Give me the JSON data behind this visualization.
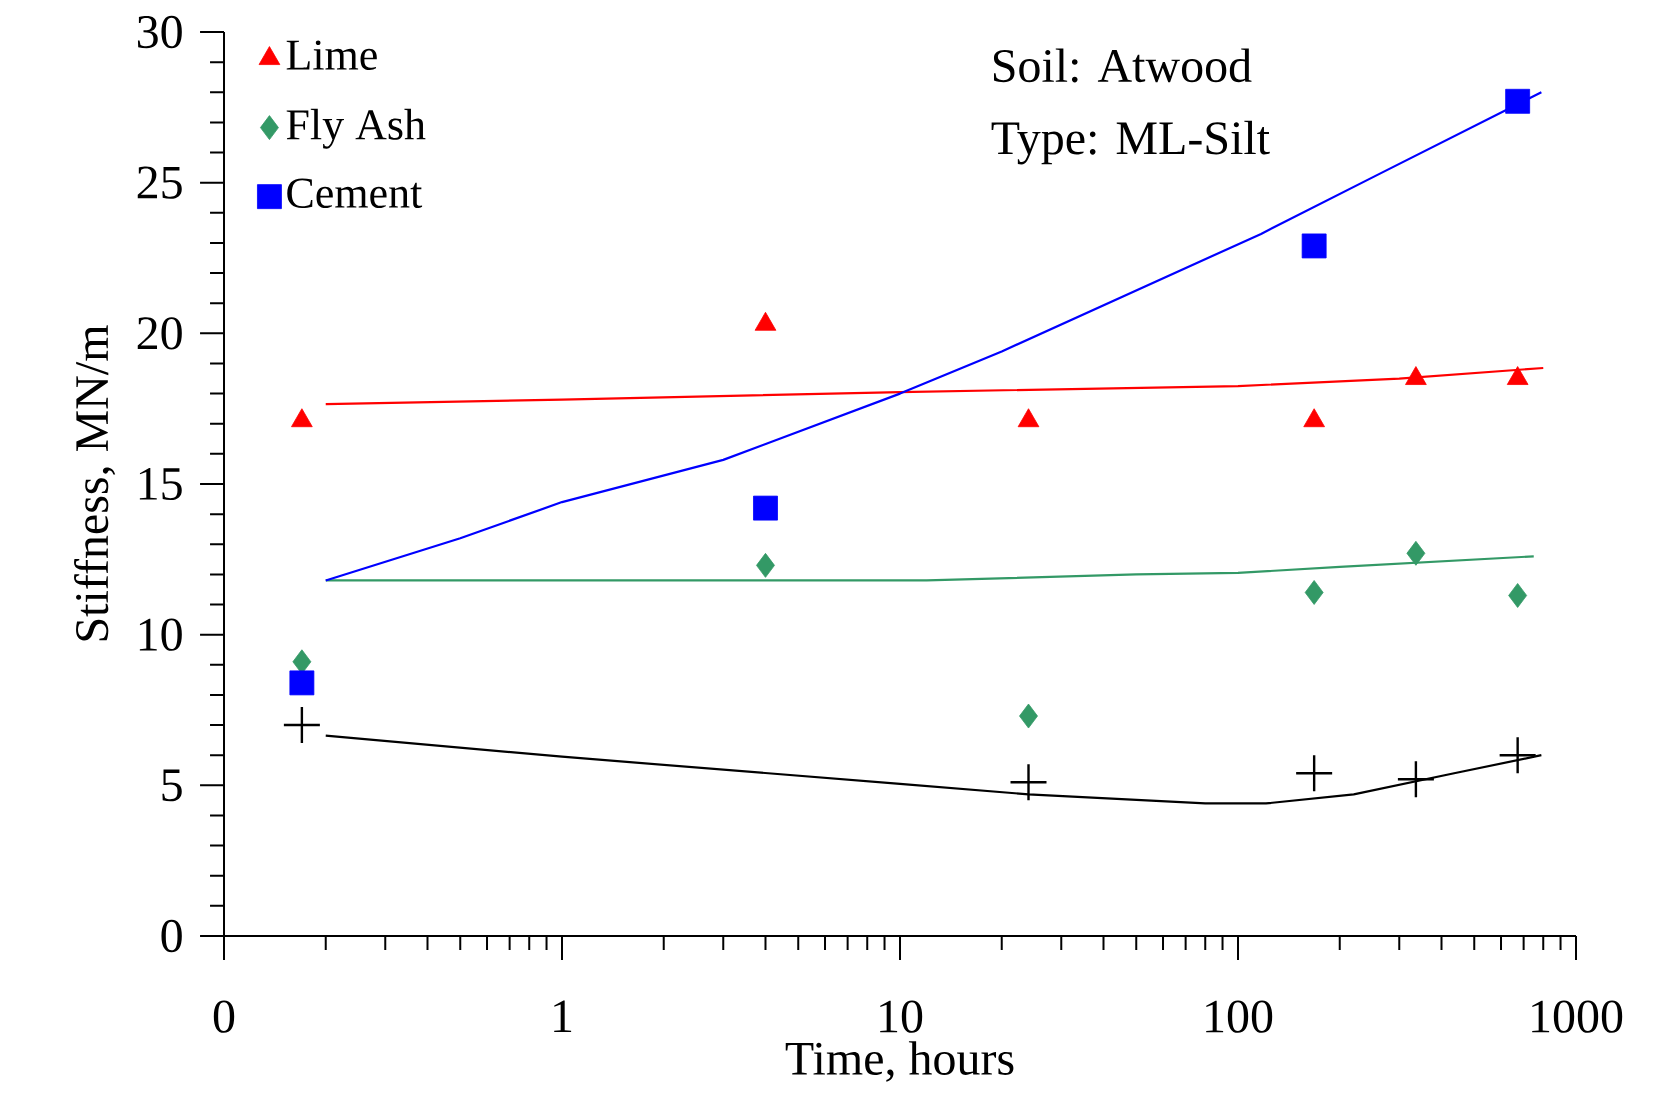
{
  "chart_data": {
    "type": "scatter",
    "xlabel": "Time, hours",
    "ylabel": "Stiffness, MN/m",
    "log": "x",
    "xlim": [
      0.1,
      1000
    ],
    "xticks": [
      {
        "value": 0.1,
        "label": "0"
      },
      1,
      10,
      100,
      1000
    ],
    "ylim": [
      0,
      30
    ],
    "yticks": [
      0,
      5,
      10,
      15,
      20,
      25,
      30
    ],
    "legend": "top left",
    "annotations": [
      "Soil: Atwood",
      "Type: ML-Silt"
    ],
    "series": [
      {
        "name": "Lime",
        "marker": "triangle",
        "color": "#ff0000",
        "x": [
          0.17,
          4,
          24,
          168,
          336,
          672
        ],
        "values": [
          17.1,
          20.3,
          17.1,
          17.1,
          18.5,
          18.5
        ]
      },
      {
        "name": "Fly Ash",
        "marker": "diamond",
        "color": "#339966",
        "x": [
          0.17,
          4,
          24,
          168,
          336,
          672
        ],
        "values": [
          9.1,
          12.3,
          7.3,
          11.4,
          12.7,
          11.3
        ]
      },
      {
        "name": "Cement",
        "marker": "square",
        "color": "#0000ff",
        "x": [
          0.17,
          4,
          168,
          672
        ],
        "values": [
          8.4,
          14.2,
          22.9,
          27.7
        ]
      },
      {
        "marker": "cross",
        "color": "#000000",
        "x": [
          0.17,
          24,
          168,
          336,
          672
        ],
        "values": [
          7.0,
          5.1,
          5.4,
          5.2,
          6.0
        ]
      },
      {
        "type": "line",
        "line_style": "solid",
        "color": "#ff0000",
        "x": [
          0.2,
          1,
          10,
          100,
          300,
          800
        ],
        "values": [
          17.65,
          17.8,
          18.05,
          18.25,
          18.5,
          18.85
        ]
      },
      {
        "type": "line",
        "line_style": "solid",
        "color": "#339966",
        "x": [
          0.2,
          12,
          50,
          100,
          200,
          750
        ],
        "values": [
          11.8,
          11.8,
          12.0,
          12.05,
          12.25,
          12.6
        ]
      },
      {
        "type": "line",
        "line_style": "solid",
        "color": "#0000ff",
        "x": [
          0.2,
          0.5,
          1,
          3,
          10,
          20,
          117,
          263,
          790
        ],
        "values": [
          11.8,
          13.2,
          14.4,
          15.8,
          18.0,
          19.4,
          23.3,
          25.3,
          28.0
        ]
      },
      {
        "type": "line",
        "line_style": "solid",
        "color": "#000000",
        "x": [
          0.2,
          1,
          10,
          24,
          80,
          121,
          220,
          436,
          790
        ],
        "values": [
          6.65,
          5.95,
          5.05,
          4.7,
          4.4,
          4.4,
          4.7,
          5.4,
          6.0
        ]
      }
    ]
  }
}
